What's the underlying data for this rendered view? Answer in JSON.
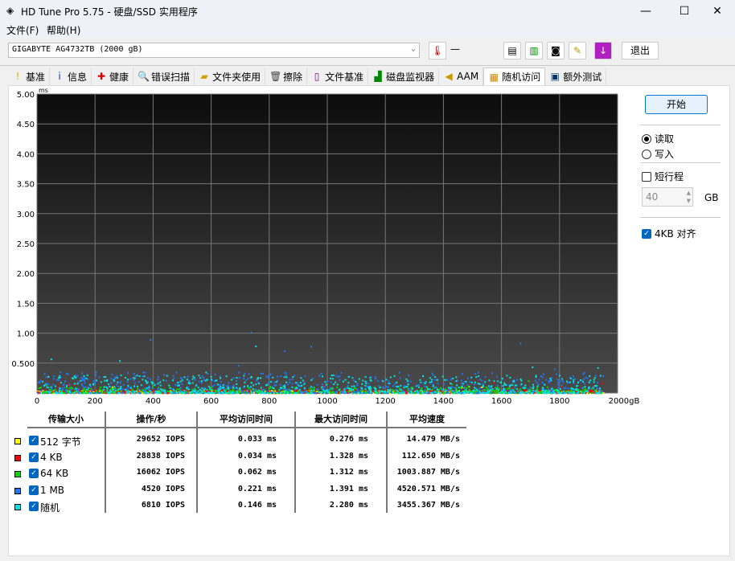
{
  "window": {
    "title": "HD Tune Pro 5.75 - 硬盘/SSD 实用程序",
    "minimize": "—",
    "maximize": "☐",
    "close": "✕"
  },
  "menu": [
    "文件(F)",
    "帮助(H)"
  ],
  "toolbar": {
    "drive": "GIGABYTE AG4732TB (2000 gB)",
    "temperature": "—",
    "exit": "退出"
  },
  "tabs": [
    {
      "label": "基准",
      "icon": "exclamation-icon"
    },
    {
      "label": "信息",
      "icon": "info-icon"
    },
    {
      "label": "健康",
      "icon": "cross-icon"
    },
    {
      "label": "错误扫描",
      "icon": "magnifier-icon"
    },
    {
      "label": "文件夹使用",
      "icon": "folder-icon"
    },
    {
      "label": "擦除",
      "icon": "trash-icon"
    },
    {
      "label": "文件基准",
      "icon": "file-icon"
    },
    {
      "label": "磁盘监视器",
      "icon": "monitor-chart-icon"
    },
    {
      "label": "AAM",
      "icon": "speaker-icon"
    },
    {
      "label": "随机访问",
      "icon": "scatter-icon",
      "active": true
    },
    {
      "label": "额外测试",
      "icon": "extra-test-icon"
    }
  ],
  "side": {
    "start": "开始",
    "read": "读取",
    "write": "写入",
    "short_stroke": "短行程",
    "stroke_value": "40",
    "unit": "GB",
    "align": "4KB 对齐",
    "read_selected": true,
    "short_stroke_checked": false,
    "align_checked": true
  },
  "chart_data": {
    "type": "scatter",
    "ylabel": "ms",
    "ylim": [
      0,
      5
    ],
    "xlim": [
      0,
      2000
    ],
    "x_unit": "gB",
    "grid": true,
    "yticks": [
      "5.00",
      "4.50",
      "4.00",
      "3.50",
      "3.00",
      "2.50",
      "2.00",
      "1.50",
      "1.00",
      "0.500"
    ],
    "xticks": [
      "0",
      "200",
      "400",
      "600",
      "800",
      "1000",
      "1200",
      "1400",
      "1600",
      "1800",
      "2000gB"
    ],
    "series": [
      {
        "name": "512 字节",
        "color": "#ffff00"
      },
      {
        "name": "4 KB",
        "color": "#ff0000"
      },
      {
        "name": "64 KB",
        "color": "#00dd00"
      },
      {
        "name": "1 MB",
        "color": "#1e78ff"
      },
      {
        "name": "随机",
        "color": "#00e5e5"
      }
    ]
  },
  "results": {
    "headers": [
      "传输大小",
      "操作/秒",
      "平均访问时间",
      "最大访问时间",
      "平均速度"
    ],
    "rows": [
      {
        "size": "512 字节",
        "color": "#ffff00",
        "iops": "29652 IOPS",
        "avg": "0.033 ms",
        "max": "0.276 ms",
        "speed": "14.479 MB/s"
      },
      {
        "size": "4 KB",
        "color": "#ff0000",
        "iops": "28838 IOPS",
        "avg": "0.034 ms",
        "max": "1.328 ms",
        "speed": "112.650 MB/s"
      },
      {
        "size": "64 KB",
        "color": "#00dd00",
        "iops": "16062 IOPS",
        "avg": "0.062 ms",
        "max": "1.312 ms",
        "speed": "1003.887 MB/s"
      },
      {
        "size": "1 MB",
        "color": "#1e78ff",
        "iops": "4520 IOPS",
        "avg": "0.221 ms",
        "max": "1.391 ms",
        "speed": "4520.571 MB/s"
      },
      {
        "size": "随机",
        "color": "#00e5e5",
        "iops": "6810 IOPS",
        "avg": "0.146 ms",
        "max": "2.280 ms",
        "speed": "3455.367 MB/s"
      }
    ]
  }
}
